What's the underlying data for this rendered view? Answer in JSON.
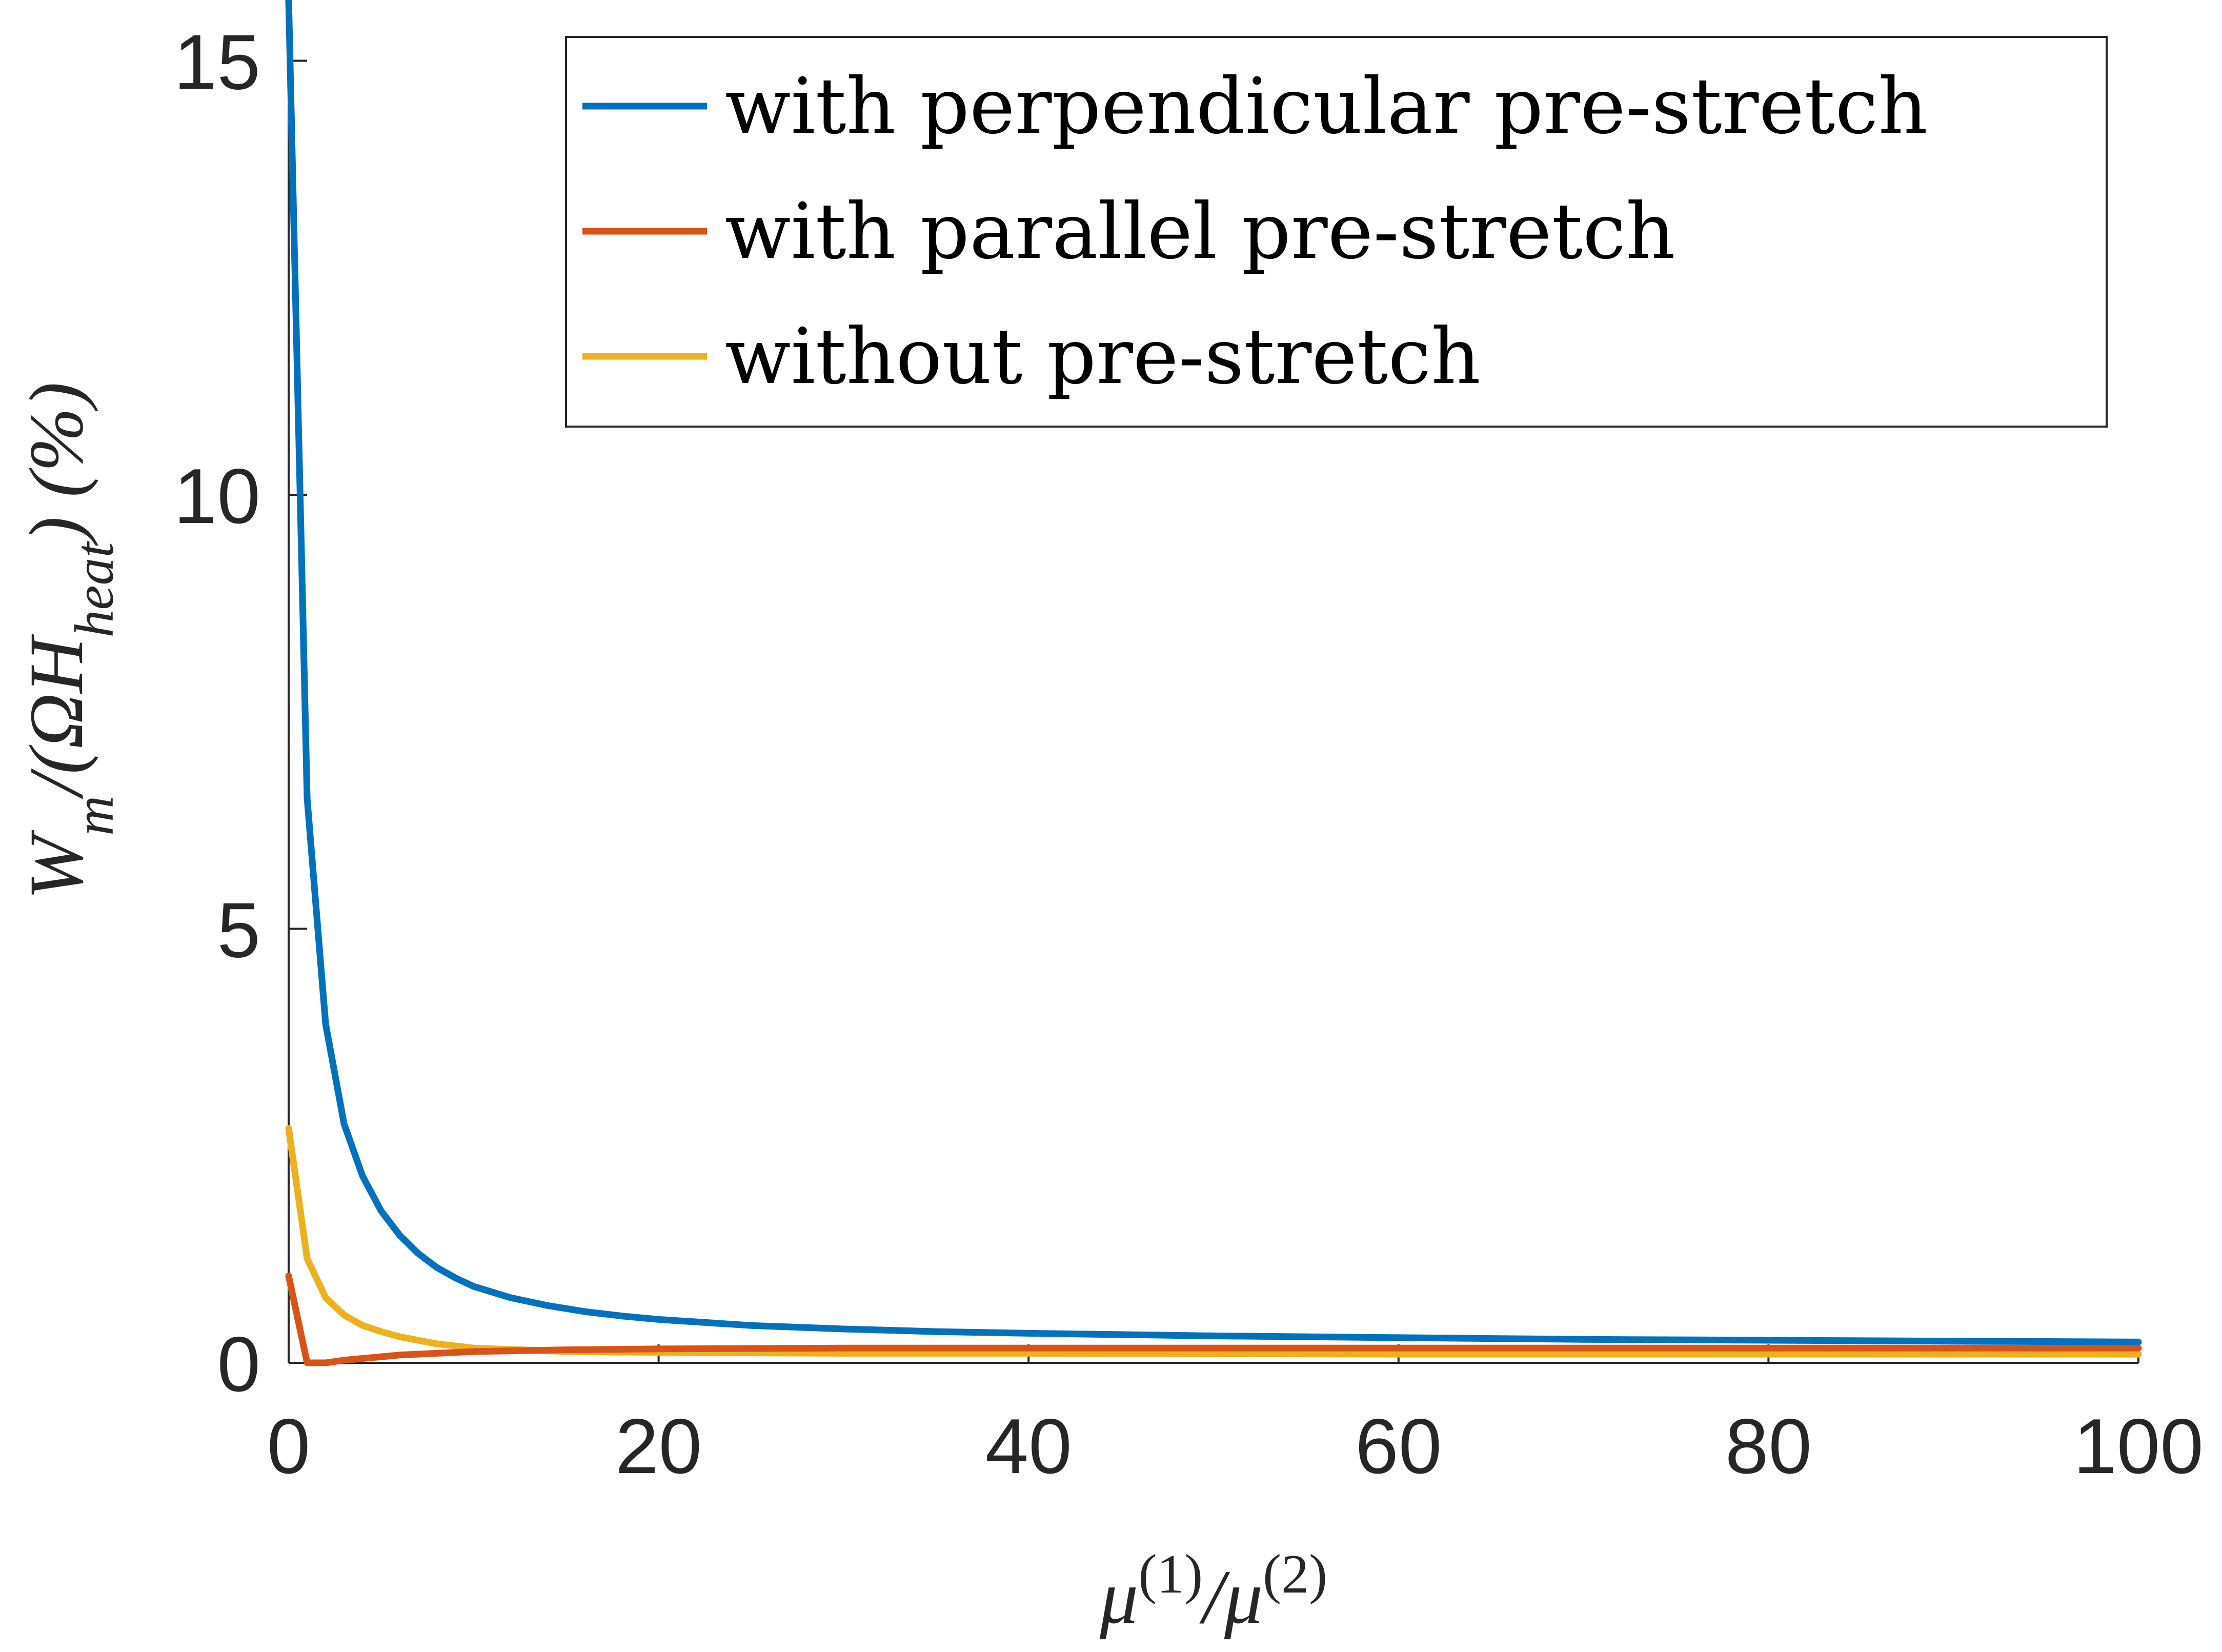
{
  "chart_data": {
    "type": "line",
    "xlabel": "μ⁽¹⁾/μ⁽²⁾",
    "ylabel": "W_m/(ΩH_heat) (%)",
    "xlim": [
      0,
      100
    ],
    "ylim": [
      0,
      15.7
    ],
    "xticks": [
      0,
      20,
      40,
      60,
      80,
      100
    ],
    "yticks": [
      0,
      5,
      10,
      15
    ],
    "grid": false,
    "legend_position": "top-right",
    "series": [
      {
        "name": "with perpendicular pre-stretch",
        "color": "#0072BD",
        "x": [
          0,
          1,
          2,
          3,
          4,
          5,
          6,
          7,
          8,
          9,
          10,
          12,
          14,
          16,
          18,
          20,
          25,
          30,
          35,
          40,
          50,
          60,
          70,
          80,
          90,
          100
        ],
        "y": [
          15.7,
          6.5,
          3.9,
          2.75,
          2.15,
          1.75,
          1.47,
          1.26,
          1.1,
          0.98,
          0.88,
          0.75,
          0.66,
          0.59,
          0.54,
          0.5,
          0.43,
          0.39,
          0.36,
          0.34,
          0.31,
          0.29,
          0.27,
          0.26,
          0.25,
          0.24
        ]
      },
      {
        "name": "with parallel pre-stretch",
        "color": "#D95319",
        "x": [
          0,
          1,
          2,
          3,
          4,
          5,
          6,
          8,
          10,
          15,
          20,
          30,
          40,
          60,
          80,
          100
        ],
        "y": [
          1.0,
          0.0,
          0.0,
          0.03,
          0.05,
          0.07,
          0.09,
          0.11,
          0.13,
          0.15,
          0.16,
          0.17,
          0.17,
          0.17,
          0.17,
          0.17
        ]
      },
      {
        "name": "without pre-stretch",
        "color": "#EDB120",
        "x": [
          0,
          1,
          2,
          3,
          4,
          5,
          6,
          8,
          10,
          15,
          20,
          30,
          40,
          60,
          80,
          100
        ],
        "y": [
          2.7,
          1.2,
          0.75,
          0.55,
          0.43,
          0.36,
          0.3,
          0.22,
          0.17,
          0.13,
          0.12,
          0.11,
          0.11,
          0.1,
          0.1,
          0.1
        ]
      }
    ]
  }
}
